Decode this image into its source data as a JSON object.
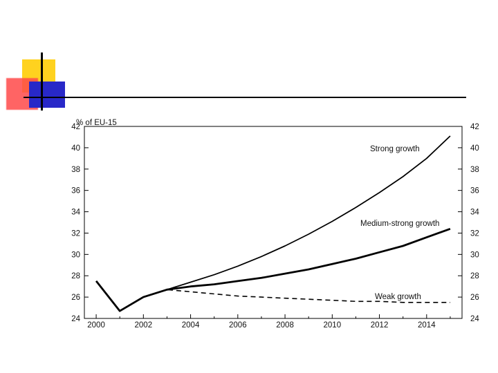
{
  "colors": {
    "yellow_square": "#ffd21f",
    "red_square": "#ff4a4a",
    "blue_square": "#2828c8",
    "line": "#000000"
  },
  "chart_data": {
    "type": "line",
    "title": "",
    "ylabel": "% of EU-15",
    "xlabel": "",
    "x_ticks": [
      "2000",
      "2002",
      "2004",
      "2006",
      "2008",
      "2010",
      "2012",
      "2014"
    ],
    "y_ticks": [
      "24",
      "26",
      "28",
      "30",
      "32",
      "34",
      "36",
      "38",
      "40",
      "42"
    ],
    "xlim": [
      1999.5,
      2015.5
    ],
    "ylim": [
      24,
      42
    ],
    "grid": false,
    "series": [
      {
        "name": "Strong growth",
        "style": "thin-solid",
        "x": [
          2000,
          2001,
          2002,
          2003,
          2004,
          2005,
          2006,
          2007,
          2008,
          2009,
          2010,
          2011,
          2012,
          2013,
          2014,
          2015
        ],
        "y": [
          27.5,
          24.7,
          26.0,
          26.7,
          27.4,
          28.1,
          28.9,
          29.8,
          30.8,
          31.9,
          33.1,
          34.4,
          35.8,
          37.3,
          39.0,
          41.1
        ]
      },
      {
        "name": "Medium-strong growth",
        "style": "thick-solid",
        "x": [
          2000,
          2001,
          2002,
          2003,
          2004,
          2005,
          2006,
          2007,
          2008,
          2009,
          2010,
          2011,
          2012,
          2013,
          2014,
          2015
        ],
        "y": [
          27.5,
          24.7,
          26.0,
          26.7,
          27.0,
          27.2,
          27.5,
          27.8,
          28.2,
          28.6,
          29.1,
          29.6,
          30.2,
          30.8,
          31.6,
          32.4
        ]
      },
      {
        "name": "Weak growth",
        "style": "dashed",
        "x": [
          2000,
          2001,
          2002,
          2003,
          2004,
          2005,
          2006,
          2007,
          2008,
          2009,
          2010,
          2011,
          2012,
          2013,
          2014,
          2015
        ],
        "y": [
          27.5,
          24.7,
          26.0,
          26.7,
          26.5,
          26.3,
          26.1,
          26.0,
          25.9,
          25.8,
          25.7,
          25.6,
          25.6,
          25.5,
          25.5,
          25.5
        ]
      }
    ]
  }
}
